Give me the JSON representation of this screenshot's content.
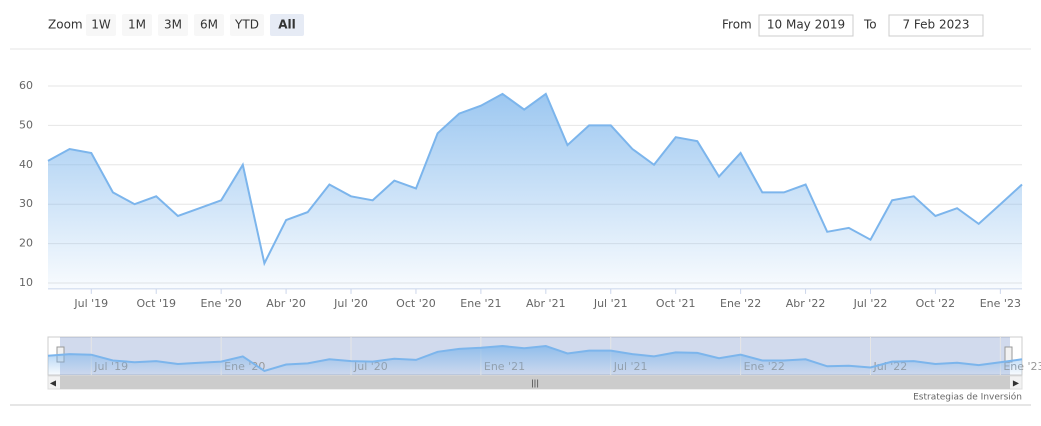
{
  "toolbar": {
    "zoom_label": "Zoom",
    "buttons": [
      "1W",
      "1M",
      "3M",
      "6M",
      "YTD",
      "All"
    ],
    "selected": "All",
    "from_label": "From",
    "from": "10 May 2019",
    "to_label": "To",
    "to": "7 Feb 2023"
  },
  "chart_data": {
    "type": "area",
    "color": "#7cb5ec",
    "grid": true,
    "x": [
      "2019-05",
      "2019-06",
      "2019-07",
      "2019-08",
      "2019-09",
      "2019-10",
      "2019-11",
      "2019-12",
      "2020-01",
      "2020-02",
      "2020-03",
      "2020-04",
      "2020-05",
      "2020-06",
      "2020-07",
      "2020-08",
      "2020-09",
      "2020-10",
      "2020-11",
      "2020-12",
      "2021-01",
      "2021-02",
      "2021-03",
      "2021-04",
      "2021-05",
      "2021-06",
      "2021-07",
      "2021-08",
      "2021-09",
      "2021-10",
      "2021-11",
      "2021-12",
      "2022-01",
      "2022-02",
      "2022-03",
      "2022-04",
      "2022-05",
      "2022-06",
      "2022-07",
      "2022-08",
      "2022-09",
      "2022-10",
      "2022-11",
      "2022-12",
      "2023-01",
      "2023-02"
    ],
    "values": [
      41,
      44,
      43,
      33,
      30,
      32,
      27,
      29,
      31,
      40,
      15,
      26,
      28,
      35,
      32,
      31,
      36,
      34,
      48,
      53,
      55,
      58,
      54,
      58,
      45,
      50,
      50,
      44,
      40,
      47,
      46,
      37,
      43,
      33,
      33,
      35,
      23,
      24,
      21,
      31,
      32,
      27,
      29,
      25,
      30,
      35
    ],
    "xlim": [
      "2019-05",
      "2023-02"
    ],
    "ylim": [
      8,
      70
    ],
    "yticks": [
      10,
      20,
      30,
      40,
      50,
      60
    ],
    "xticks": [
      {
        "value": "2019-07",
        "label": "Jul '19"
      },
      {
        "value": "2019-10",
        "label": "Oct '19"
      },
      {
        "value": "2020-01",
        "label": "Ene '20"
      },
      {
        "value": "2020-04",
        "label": "Abr '20"
      },
      {
        "value": "2020-07",
        "label": "Jul '20"
      },
      {
        "value": "2020-10",
        "label": "Oct '20"
      },
      {
        "value": "2021-01",
        "label": "Ene '21"
      },
      {
        "value": "2021-04",
        "label": "Abr '21"
      },
      {
        "value": "2021-07",
        "label": "Jul '21"
      },
      {
        "value": "2021-10",
        "label": "Oct '21"
      },
      {
        "value": "2022-01",
        "label": "Ene '22"
      },
      {
        "value": "2022-04",
        "label": "Abr '22"
      },
      {
        "value": "2022-07",
        "label": "Jul '22"
      },
      {
        "value": "2022-10",
        "label": "Oct '22"
      },
      {
        "value": "2023-01",
        "label": "Ene '23"
      }
    ]
  },
  "credits": "Estrategias de Inversión"
}
